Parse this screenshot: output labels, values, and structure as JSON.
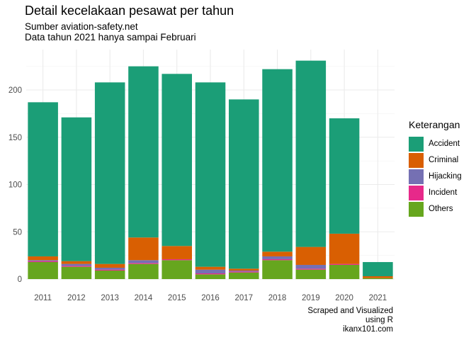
{
  "title": "Detail kecelakaan pesawat per tahun",
  "subtitle_lines": [
    "Sumber aviation-safety.net",
    "Data tahun 2021 hanya sampai Februari"
  ],
  "caption_lines": [
    "Scraped and Visualized",
    "using R",
    "ikanx101.com"
  ],
  "legend": {
    "title": "Keterangan",
    "items": [
      {
        "label": "Accident",
        "color": "#1B9E77"
      },
      {
        "label": "Criminal",
        "color": "#D95F02"
      },
      {
        "label": "Hijacking",
        "color": "#7570B3"
      },
      {
        "label": "Incident",
        "color": "#E7298A"
      },
      {
        "label": "Others",
        "color": "#66A61E"
      }
    ]
  },
  "chart_data": {
    "type": "bar",
    "stacked": true,
    "categories": [
      "2011",
      "2012",
      "2013",
      "2014",
      "2015",
      "2016",
      "2017",
      "2018",
      "2019",
      "2020",
      "2021"
    ],
    "series": [
      {
        "name": "Accident",
        "color": "#1B9E77",
        "values": [
          163,
          152,
          192,
          181,
          182,
          195,
          179,
          193,
          197,
          122,
          15
        ]
      },
      {
        "name": "Criminal",
        "color": "#D95F02",
        "values": [
          4,
          3,
          4,
          24,
          14,
          3,
          2,
          5,
          19,
          32,
          2
        ]
      },
      {
        "name": "Hijacking",
        "color": "#7570B3",
        "values": [
          1,
          2,
          2,
          3,
          0,
          4,
          1,
          3,
          4,
          0,
          0
        ]
      },
      {
        "name": "Incident",
        "color": "#E7298A",
        "values": [
          1,
          1,
          1,
          1,
          1,
          1,
          1,
          1,
          1,
          1,
          0
        ]
      },
      {
        "name": "Others",
        "color": "#66A61E",
        "values": [
          18,
          13,
          9,
          16,
          20,
          5,
          7,
          20,
          10,
          15,
          1
        ]
      }
    ],
    "y_ticks": [
      0,
      50,
      100,
      150,
      200
    ],
    "ylim": [
      0,
      245
    ],
    "xlabel": "",
    "ylabel": "",
    "grid": true,
    "legend_position": "right"
  }
}
